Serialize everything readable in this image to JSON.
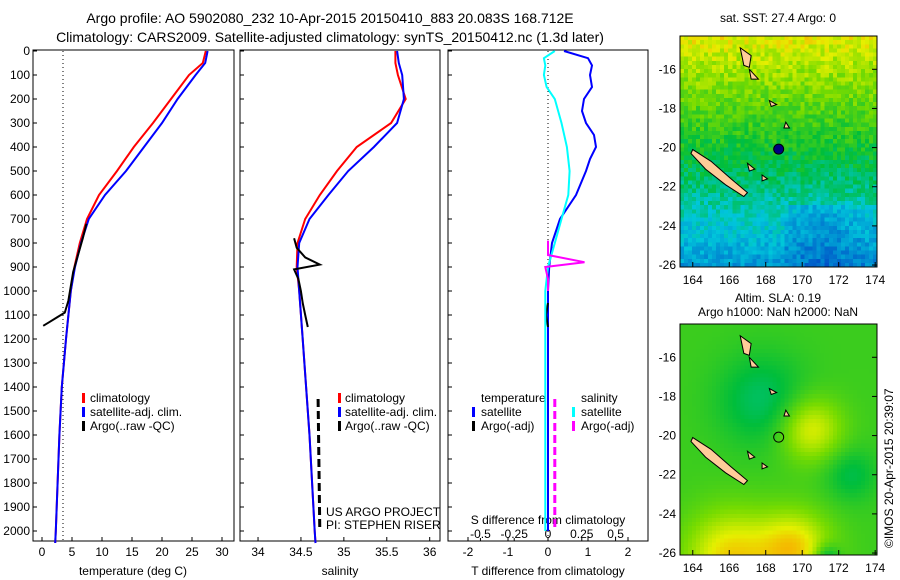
{
  "header": {
    "line1": "Argo profile: AO 5902080_232 10-Apr-2015 20150410_883 20.083S 168.712E",
    "line2": "Climatology: CARS2009. Satellite-adjusted climatology: synTS_20150412.nc (1.3d later)"
  },
  "colors": {
    "climatology": "#ff0000",
    "satellite": "#0000ff",
    "argo": "#000000",
    "sal_satellite": "#00ffff",
    "sal_argo": "#ff00ff",
    "land": "#ffcc99"
  },
  "chart_data": [
    {
      "type": "line",
      "title": "",
      "xlabel": "temperature (deg C)",
      "ylabel": "",
      "xlim": [
        -2,
        32
      ],
      "ylim": [
        2050,
        0
      ],
      "xticks": [
        0,
        5,
        10,
        15,
        20,
        25,
        30
      ],
      "yticks": [
        0,
        100,
        200,
        300,
        400,
        500,
        600,
        700,
        800,
        900,
        1000,
        1100,
        1200,
        1300,
        1400,
        1500,
        1600,
        1700,
        1800,
        1900,
        2000
      ],
      "legend": {
        "placement": "center",
        "entries": [
          "climatology",
          "satellite-adj. clim.",
          "Argo(..raw -QC)"
        ]
      },
      "series": [
        {
          "name": "climatology",
          "color": "#ff0000",
          "depth": [
            0,
            50,
            100,
            200,
            300,
            400,
            500,
            600,
            700,
            800,
            900,
            1000,
            1200,
            1400,
            1600,
            1800,
            2000,
            2050
          ],
          "values": [
            27.3,
            26.8,
            24.5,
            21.5,
            18.5,
            15.3,
            12.5,
            9.5,
            7.5,
            6.3,
            5.4,
            4.8,
            4.0,
            3.3,
            2.9,
            2.6,
            2.3,
            2.2
          ]
        },
        {
          "name": "satellite-adj. clim.",
          "color": "#0000ff",
          "depth": [
            0,
            50,
            100,
            200,
            300,
            400,
            500,
            600,
            700,
            800,
            900,
            1000,
            1200,
            1400,
            1600,
            1800,
            2000,
            2050
          ],
          "values": [
            27.6,
            27.2,
            25.6,
            22.6,
            20.0,
            17.0,
            14.0,
            10.5,
            7.8,
            6.5,
            5.5,
            4.8,
            4.0,
            3.3,
            2.9,
            2.6,
            2.3,
            2.2
          ]
        },
        {
          "name": "Argo(..raw -QC)",
          "color": "#000000",
          "depth": [
            720,
            780,
            850,
            920,
            980,
            1040,
            1090,
            1110,
            1130,
            1145
          ],
          "values": [
            7.4,
            6.8,
            6.0,
            5.2,
            4.8,
            4.4,
            3.8,
            2.5,
            1.2,
            0.2
          ]
        }
      ]
    },
    {
      "type": "line",
      "title": "",
      "xlabel": "salinity",
      "ylabel": "",
      "xlim": [
        33.8,
        36.1
      ],
      "ylim": [
        2050,
        0
      ],
      "xticks": [
        34,
        34.5,
        35,
        35.5,
        36
      ],
      "legend": {
        "placement": "center",
        "entries": [
          "climatology",
          "satellite-adj. clim.",
          "Argo(..raw -QC)"
        ]
      },
      "annotations": [
        "US ARGO PROJECT",
        "PI: STEPHEN RISER"
      ],
      "series": [
        {
          "name": "climatology",
          "color": "#ff0000",
          "depth": [
            0,
            50,
            100,
            200,
            300,
            400,
            500,
            600,
            700,
            800,
            900,
            1000,
            1200,
            1400,
            1600,
            1800,
            2000,
            2050
          ],
          "values": [
            35.6,
            35.6,
            35.63,
            35.72,
            35.55,
            35.15,
            34.92,
            34.72,
            34.55,
            34.46,
            34.45,
            34.48,
            34.52,
            34.56,
            34.6,
            34.63,
            34.66,
            34.67
          ]
        },
        {
          "name": "satellite-adj. clim.",
          "color": "#0000ff",
          "depth": [
            0,
            50,
            100,
            200,
            300,
            400,
            500,
            600,
            700,
            800,
            900,
            1000,
            1200,
            1400,
            1600,
            1800,
            2000,
            2050
          ],
          "values": [
            35.62,
            35.64,
            35.68,
            35.7,
            35.62,
            35.35,
            35.05,
            34.82,
            34.6,
            34.48,
            34.46,
            34.48,
            34.52,
            34.56,
            34.6,
            34.63,
            34.66,
            34.67
          ]
        },
        {
          "name": "Argo(..raw -QC)",
          "color": "#000000",
          "depth": [
            780,
            820,
            860,
            890,
            910,
            950,
            1000,
            1050,
            1100,
            1150
          ],
          "values": [
            34.42,
            34.45,
            34.55,
            34.72,
            34.42,
            34.47,
            34.5,
            34.52,
            34.55,
            34.58
          ]
        },
        {
          "name": "Argo(..raw -QC) deep",
          "color": "#000000",
          "dashed": true,
          "depth": [
            1450,
            2000
          ],
          "values": [
            34.7,
            34.72
          ]
        }
      ]
    },
    {
      "type": "line",
      "title": "",
      "xlabel": "T difference from climatology",
      "x2label": "S difference from climatology",
      "xlim": [
        -2.5,
        2.5
      ],
      "x2lim": [
        -0.75,
        0.75
      ],
      "ylim": [
        2050,
        0
      ],
      "xticks": [
        -2,
        -1,
        0,
        1,
        2
      ],
      "x2ticks": [
        -0.5,
        -0.25,
        0,
        0.25,
        0.5
      ],
      "legend": {
        "placement": "center",
        "entries": [
          "temperature",
          "satellite",
          "Argo(-adj)",
          "salinity",
          "satellite",
          "Argo(-adj)"
        ]
      },
      "series": [
        {
          "name": "temperature satellite",
          "axis": "T",
          "color": "#0000ff",
          "depth": [
            0,
            30,
            60,
            100,
            150,
            200,
            250,
            300,
            350,
            400,
            450,
            500,
            600,
            700,
            800,
            900,
            1000,
            1500,
            2000
          ],
          "values": [
            0.4,
            1.0,
            1.1,
            1.05,
            1.1,
            0.9,
            0.85,
            0.95,
            1.15,
            1.2,
            1.05,
            0.95,
            0.7,
            0.3,
            0.1,
            0.03,
            0.0,
            0.0,
            0.0
          ]
        },
        {
          "name": "temperature Argo(-adj)",
          "axis": "T",
          "color": "#000000",
          "depth": [
            1050,
            1100,
            1150
          ],
          "values": [
            0.0,
            -0.05,
            0.0
          ]
        },
        {
          "name": "salinity satellite",
          "axis": "S",
          "color": "#00ffff",
          "depth": [
            0,
            30,
            60,
            100,
            150,
            200,
            300,
            400,
            500,
            600,
            700,
            800,
            900,
            1000,
            1500,
            2000
          ],
          "values": [
            0.05,
            -0.03,
            -0.02,
            -0.03,
            -0.01,
            0.05,
            0.1,
            0.14,
            0.16,
            0.15,
            0.1,
            0.05,
            0.0,
            -0.02,
            -0.02,
            -0.02
          ]
        },
        {
          "name": "salinity Argo(-adj)",
          "axis": "S",
          "color": "#ff00ff",
          "depth": [
            790,
            850,
            880,
            900,
            950,
            1000
          ],
          "values": [
            0.0,
            0.0,
            0.27,
            -0.02,
            0.0,
            0.0
          ]
        },
        {
          "name": "salinity Argo(-adj) deep",
          "axis": "S",
          "color": "#ff00ff",
          "dashed": true,
          "depth": [
            1450,
            2000
          ],
          "values": [
            0.05,
            0.05
          ]
        }
      ]
    }
  ],
  "maps": [
    {
      "title": "sat. SST: 27.4 Argo: 0",
      "lon_ticks": [
        164,
        166,
        168,
        170,
        172,
        174
      ],
      "lat_ticks": [
        "-16",
        "-18",
        "-20",
        "-22",
        "-24",
        "-26"
      ]
    },
    {
      "title1": "Altim. SLA: 0.19",
      "title2": "Argo h1000: NaN h2000: NaN",
      "lon_ticks": [
        164,
        166,
        168,
        170,
        172,
        174
      ],
      "lat_ticks": [
        "-16",
        "-18",
        "-20",
        "-22",
        "-24",
        "-26"
      ]
    }
  ],
  "stamp": "©IMOS 20-Apr-2015 20:39:07"
}
